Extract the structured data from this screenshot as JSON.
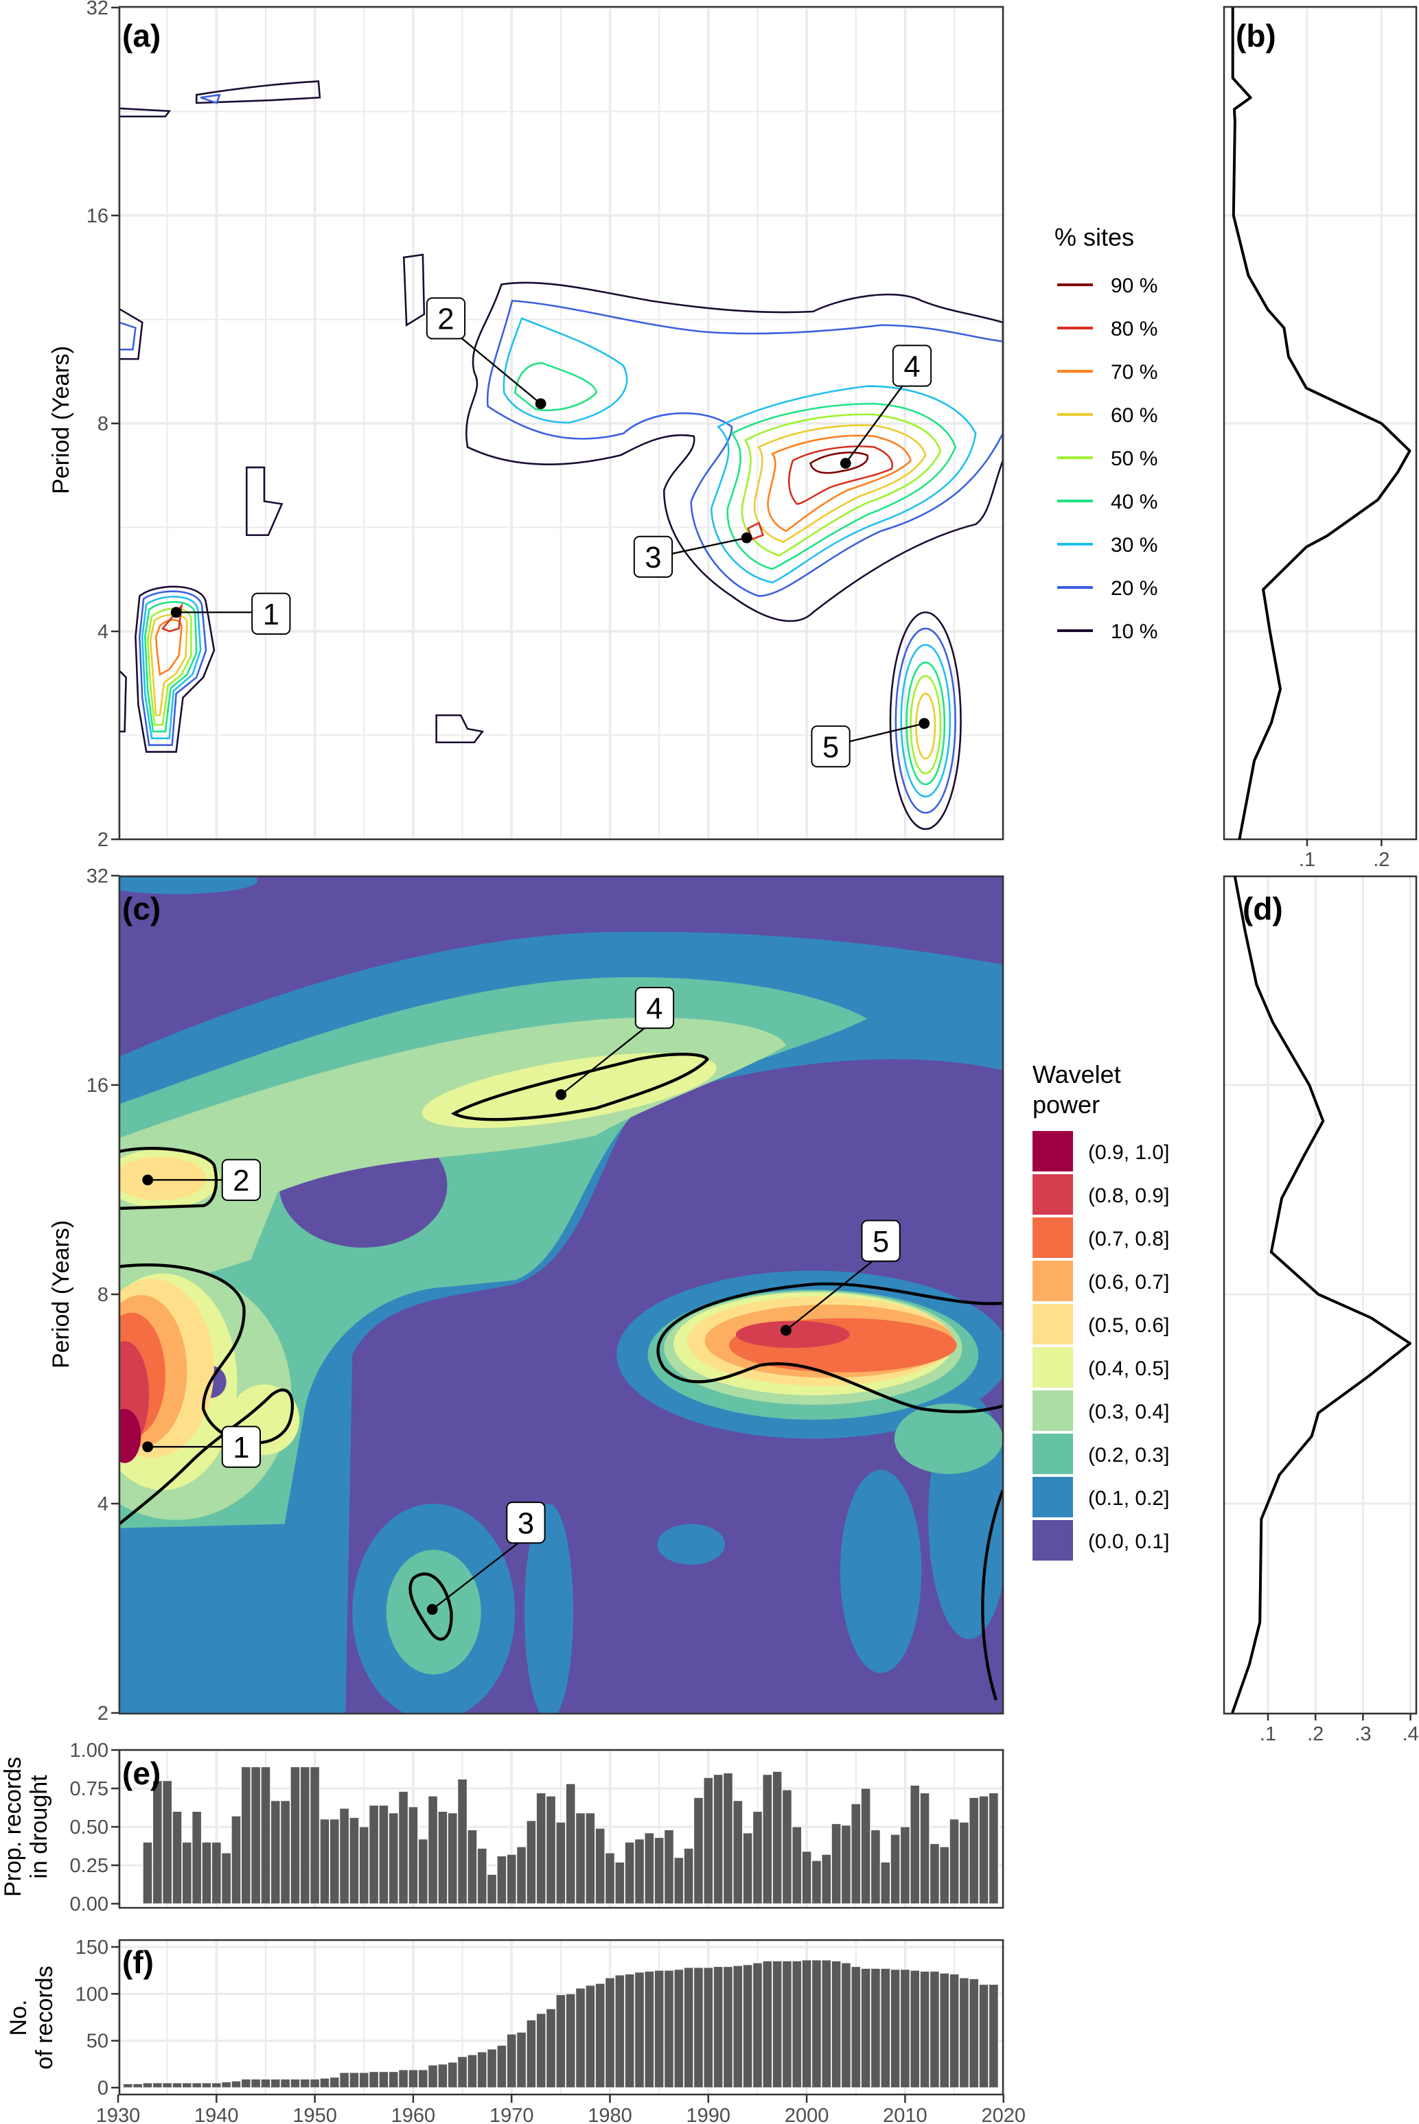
{
  "colors": {
    "grid": "#ebebeb",
    "bar": "#595959",
    "contours": [
      "#7f0000",
      "#d7301f",
      "#ff7f1e",
      "#eccb30",
      "#9ef22c",
      "#1ee383",
      "#1fbff0",
      "#3b5fe0",
      "#1b0b30"
    ],
    "wavelet": [
      "#9E0142",
      "#D53E4F",
      "#F46D43",
      "#FDAE61",
      "#FEE08B",
      "#E6F598",
      "#ABDDA4",
      "#66C2A5",
      "#3288BD",
      "#5E4FA2"
    ]
  },
  "chart_data": [
    {
      "panel": "(a)",
      "type": "contour",
      "ylabel": "Period (Years)",
      "y_ticks": [
        "32",
        "16",
        "8",
        "4",
        "2"
      ],
      "xlim": [
        1930,
        2020
      ],
      "ylim": [
        2,
        32
      ],
      "legend_title": "% sites",
      "legend": [
        "90 %",
        "80 %",
        "70 %",
        "60 %",
        "50 %",
        "40 %",
        "30 %",
        "20 %",
        "10 %"
      ],
      "annotations": [
        {
          "label": "1",
          "year": 1936,
          "period": 4.2
        },
        {
          "label": "2",
          "year": 1973,
          "period": 8.5
        },
        {
          "label": "3",
          "year": 1994,
          "period": 5.4
        },
        {
          "label": "4",
          "year": 2004,
          "period": 7.0
        },
        {
          "label": "5",
          "year": 2012,
          "period": 2.9
        }
      ]
    },
    {
      "panel": "(b)",
      "type": "line",
      "x_ticks": [
        ".1",
        ".2"
      ],
      "xlim": [
        -0.012,
        0.247
      ],
      "period": [
        32,
        25.3,
        23.7,
        22.8,
        21.9,
        16,
        13.1,
        11.7,
        11.0,
        10.0,
        9.0,
        8.0,
        7.3,
        6.8,
        6.2,
        5.5,
        5.3,
        4.6,
        4.0,
        3.3,
        2.95,
        2.6,
        2.0
      ],
      "power": [
        0.0,
        0.0,
        0.024,
        0.002,
        0.003,
        0.001,
        0.021,
        0.047,
        0.069,
        0.075,
        0.099,
        0.2,
        0.238,
        0.222,
        0.195,
        0.127,
        0.099,
        0.041,
        0.05,
        0.064,
        0.052,
        0.029,
        0.009
      ]
    },
    {
      "panel": "(c)",
      "type": "heatmap",
      "ylabel": "Period (Years)",
      "y_ticks": [
        "32",
        "16",
        "8",
        "4",
        "2"
      ],
      "xlim": [
        1930,
        2020
      ],
      "ylim": [
        2,
        32
      ],
      "legend_title": [
        "Wavelet",
        "power"
      ],
      "legend": [
        "(0.9, 1.0]",
        "(0.8, 0.9]",
        "(0.7, 0.8]",
        "(0.6, 0.7]",
        "(0.5, 0.6]",
        "(0.4, 0.5]",
        "(0.3, 0.4]",
        "(0.2, 0.3]",
        "(0.1, 0.2]",
        "(0.0, 0.1]"
      ],
      "annotations": [
        {
          "label": "1",
          "year": 1933,
          "period": 4.8
        },
        {
          "label": "2",
          "year": 1933,
          "period": 11.7
        },
        {
          "label": "3",
          "year": 1962,
          "period": 2.8
        },
        {
          "label": "4",
          "year": 1975,
          "period": 15.5
        },
        {
          "label": "5",
          "year": 1998,
          "period": 7.1
        }
      ]
    },
    {
      "panel": "(d)",
      "type": "line",
      "x_ticks": [
        ".1",
        ".2",
        ".3",
        ".4"
      ],
      "xlim": [
        0.0075,
        0.413
      ],
      "period": [
        32.4,
        26.6,
        22.3,
        19.7,
        16,
        14.2,
        12.7,
        11.0,
        9.2,
        8.0,
        7.4,
        6.8,
        6.1,
        5.4,
        5.0,
        4.4,
        3.8,
        2.7,
        2.35,
        2.0
      ],
      "power": [
        0.03,
        0.052,
        0.076,
        0.11,
        0.187,
        0.216,
        0.177,
        0.129,
        0.107,
        0.206,
        0.317,
        0.399,
        0.312,
        0.206,
        0.192,
        0.124,
        0.086,
        0.083,
        0.061,
        0.025
      ]
    },
    {
      "panel": "(e)",
      "type": "bar",
      "ylabel": [
        "Prop. records",
        "in drought"
      ],
      "y_ticks": [
        "1.00",
        "0.75",
        "0.50",
        "0.25",
        "0.00"
      ],
      "ylim": [
        0,
        1
      ],
      "start_year": 1933,
      "values": [
        0.4,
        0.8,
        0.8,
        0.6,
        0.4,
        0.6,
        0.4,
        0.4,
        0.33,
        0.57,
        0.89,
        0.89,
        0.89,
        0.67,
        0.67,
        0.89,
        0.89,
        0.89,
        0.55,
        0.55,
        0.62,
        0.56,
        0.5,
        0.64,
        0.64,
        0.59,
        0.73,
        0.63,
        0.42,
        0.7,
        0.6,
        0.59,
        0.81,
        0.48,
        0.36,
        0.19,
        0.31,
        0.32,
        0.37,
        0.54,
        0.72,
        0.7,
        0.53,
        0.78,
        0.59,
        0.59,
        0.49,
        0.33,
        0.27,
        0.4,
        0.42,
        0.46,
        0.43,
        0.48,
        0.3,
        0.36,
        0.69,
        0.82,
        0.84,
        0.85,
        0.67,
        0.46,
        0.6,
        0.84,
        0.86,
        0.74,
        0.5,
        0.34,
        0.28,
        0.32,
        0.52,
        0.51,
        0.65,
        0.75,
        0.48,
        0.27,
        0.45,
        0.5,
        0.77,
        0.72,
        0.39,
        0.37,
        0.55,
        0.53,
        0.69,
        0.7,
        0.72
      ]
    },
    {
      "panel": "(f)",
      "type": "bar",
      "ylabel": [
        "No.",
        "of records"
      ],
      "y_ticks": [
        "150",
        "100",
        "50",
        "0"
      ],
      "ylim": [
        0,
        150
      ],
      "x_ticks": [
        "1930",
        "1940",
        "1950",
        "1960",
        "1970",
        "1980",
        "1990",
        "2000",
        "2010",
        "2020"
      ],
      "start_year": 1931,
      "values": [
        4,
        4,
        5,
        5,
        5,
        5,
        5,
        5,
        5,
        5,
        6,
        7,
        9,
        9,
        9,
        9,
        9,
        9,
        9,
        9,
        10,
        11,
        16,
        16,
        16,
        17,
        17,
        17,
        19,
        19,
        19,
        24,
        25,
        27,
        33,
        35,
        38,
        41,
        45,
        57,
        59,
        72,
        79,
        84,
        99,
        100,
        106,
        109,
        111,
        117,
        120,
        121,
        123,
        124,
        125,
        125,
        126,
        128,
        128,
        128,
        129,
        129,
        130,
        131,
        133,
        135,
        135,
        135,
        135,
        136,
        136,
        136,
        135,
        133,
        129,
        127,
        127,
        127,
        126,
        126,
        125,
        124,
        124,
        122,
        121,
        117,
        116,
        110,
        110
      ]
    }
  ]
}
